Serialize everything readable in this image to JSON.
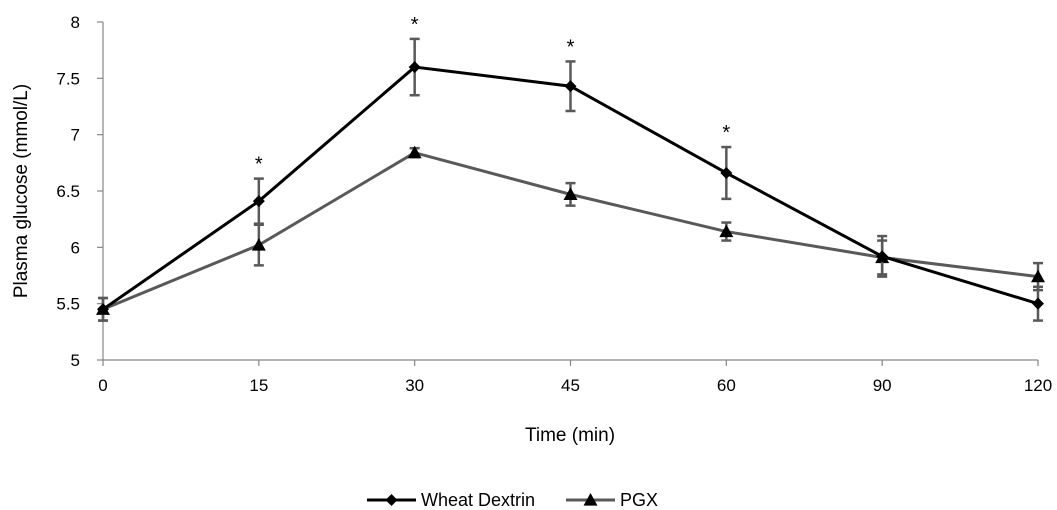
{
  "chart_data": {
    "type": "line",
    "xlabel": "Time (min)",
    "ylabel": "Plasma glucose (mmol/L)",
    "categories": [
      "0",
      "15",
      "30",
      "45",
      "60",
      "90",
      "120"
    ],
    "ylim": [
      5,
      8
    ],
    "yticks": [
      "5",
      "5.5",
      "6",
      "6.5",
      "7",
      "7.5",
      "8"
    ],
    "series": [
      {
        "name": "Wheat Dextrin",
        "marker": "diamond",
        "color": "#000000",
        "values": [
          5.45,
          6.41,
          7.6,
          7.43,
          6.66,
          5.92,
          5.5
        ],
        "error": [
          0.1,
          0.2,
          0.25,
          0.22,
          0.23,
          0.18,
          0.15
        ]
      },
      {
        "name": "PGX",
        "marker": "triangle",
        "color": "#595959",
        "values": [
          5.45,
          6.02,
          6.84,
          6.47,
          6.14,
          5.91,
          5.74
        ],
        "error": [
          0.1,
          0.18,
          0.04,
          0.1,
          0.08,
          0.15,
          0.12
        ]
      }
    ],
    "significance": {
      "label": "*",
      "categories": [
        "15",
        "30",
        "45",
        "60"
      ]
    },
    "legend": {
      "position": "bottom"
    },
    "grid": false
  }
}
